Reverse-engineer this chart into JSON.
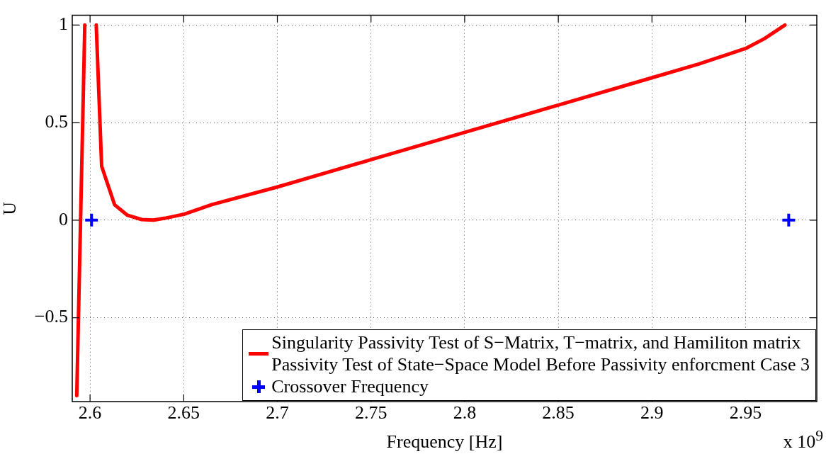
{
  "chart_data": {
    "type": "line",
    "xlabel": "Frequency [Hz]",
    "ylabel": "U",
    "annotations": [
      "x 10$^{9}$"
    ],
    "xlim": [
      2.5905,
      2.988
    ],
    "xticks": [
      2.6,
      2.65,
      2.7,
      2.75,
      2.8,
      2.85,
      2.9,
      2.95
    ],
    "ylim": [
      -0.93,
      1.05
    ],
    "yticks": [
      -0.5,
      0,
      0.5,
      1
    ],
    "grid": true,
    "legend": "bottom right",
    "series": [
      {
        "name": "Singularity Passivity Test of S−Matrix, T−matrix, and Hamiliton matrix\nPassivity Test of State−Space Model Before Passivity enforcment Case 3",
        "color": "#ff0000",
        "marker": "none",
        "line_style": "solid",
        "x": [
          2.5929,
          2.5972,
          2.6,
          2.6033,
          2.6062,
          2.6131,
          2.62,
          2.6276,
          2.6339,
          2.64,
          2.65,
          2.665,
          2.7,
          2.75,
          2.8,
          2.85,
          2.9,
          2.925,
          2.95,
          2.96,
          2.971
        ],
        "values": [
          -0.9,
          1.0,
          null,
          1.0,
          0.276,
          0.079,
          0.025,
          0.003,
          0,
          0.01,
          0.03,
          0.08,
          0.17,
          0.31,
          0.45,
          0.59,
          0.73,
          0.8,
          0.88,
          0.93,
          1.0
        ]
      },
      {
        "name": "Crossover Frequency",
        "type": "scatter",
        "color": "#0000ff",
        "marker": "cross",
        "x": [
          2.6008,
          2.973
        ],
        "values": [
          0,
          0
        ]
      }
    ]
  }
}
